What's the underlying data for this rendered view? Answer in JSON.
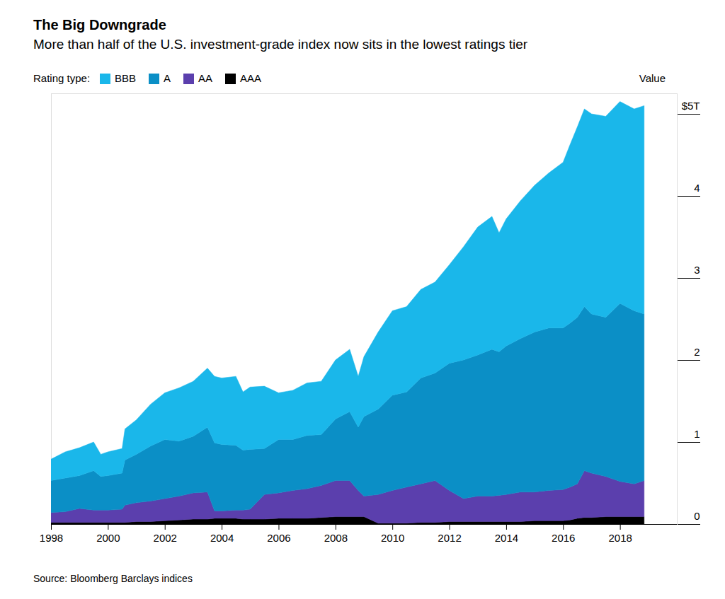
{
  "chart_data": {
    "type": "area",
    "title": "The Big Downgrade",
    "subtitle": "More than half of the U.S. investment-grade index now sits in the lowest ratings tier",
    "legend_title": "Rating type:",
    "ylabel": "Value",
    "source": "Source: Bloomberg Barclays indices",
    "stacked": true,
    "grid": false,
    "legend": "top-left",
    "x": [
      1998,
      1998.5,
      1999,
      1999.5,
      1999.75,
      2000,
      2000.5,
      2000.6,
      2001,
      2001.5,
      2002,
      2002.5,
      2003,
      2003.5,
      2003.75,
      2004,
      2004.5,
      2004.75,
      2005,
      2005.5,
      2006,
      2006.5,
      2007,
      2007.5,
      2008,
      2008.5,
      2008.8,
      2009,
      2009.5,
      2010,
      2010.5,
      2011,
      2011.5,
      2012,
      2012.5,
      2013,
      2013.5,
      2013.75,
      2014,
      2014.5,
      2015,
      2015.5,
      2016,
      2016.25,
      2016.5,
      2016.75,
      2017,
      2017.5,
      2018,
      2018.5,
      2018.85
    ],
    "xlim": [
      1998,
      2020
    ],
    "xticks": [
      1998,
      2000,
      2002,
      2004,
      2006,
      2008,
      2010,
      2012,
      2014,
      2016,
      2018
    ],
    "ylim": [
      0,
      5.25
    ],
    "yticks": [
      0,
      1,
      2,
      3,
      4,
      {
        "value": 5,
        "label": "$5T"
      }
    ],
    "series": [
      {
        "name": "BBB",
        "color": "#1ab7ea",
        "values": [
          0.26,
          0.32,
          0.34,
          0.35,
          0.27,
          0.29,
          0.3,
          0.38,
          0.42,
          0.51,
          0.57,
          0.65,
          0.67,
          0.72,
          0.81,
          0.81,
          0.84,
          0.71,
          0.76,
          0.76,
          0.57,
          0.6,
          0.64,
          0.65,
          0.72,
          0.76,
          0.62,
          0.73,
          0.94,
          1.03,
          1.04,
          1.08,
          1.11,
          1.2,
          1.38,
          1.56,
          1.62,
          1.45,
          1.55,
          1.68,
          1.79,
          1.89,
          2.02,
          2.18,
          2.32,
          2.41,
          2.44,
          2.45,
          2.46,
          2.46,
          2.54
        ]
      },
      {
        "name": "A",
        "color": "#0b8fc6",
        "values": [
          0.39,
          0.41,
          0.4,
          0.48,
          0.41,
          0.42,
          0.44,
          0.55,
          0.59,
          0.67,
          0.72,
          0.67,
          0.69,
          0.79,
          0.83,
          0.81,
          0.79,
          0.73,
          0.73,
          0.56,
          0.65,
          0.62,
          0.65,
          0.62,
          0.75,
          0.84,
          0.77,
          0.97,
          1.04,
          1.16,
          1.16,
          1.29,
          1.31,
          1.55,
          1.69,
          1.72,
          1.79,
          1.75,
          1.81,
          1.87,
          1.95,
          1.98,
          1.97,
          2.0,
          2.03,
          2.0,
          1.94,
          1.94,
          2.17,
          2.11,
          2.03
        ]
      },
      {
        "name": "AA",
        "color": "#5b3fad",
        "values": [
          0.12,
          0.13,
          0.17,
          0.15,
          0.15,
          0.15,
          0.16,
          0.21,
          0.23,
          0.25,
          0.27,
          0.29,
          0.32,
          0.33,
          0.09,
          0.09,
          0.1,
          0.11,
          0.12,
          0.3,
          0.31,
          0.34,
          0.36,
          0.39,
          0.44,
          0.44,
          0.32,
          0.25,
          0.35,
          0.4,
          0.44,
          0.47,
          0.51,
          0.38,
          0.28,
          0.31,
          0.31,
          0.32,
          0.33,
          0.36,
          0.35,
          0.37,
          0.38,
          0.4,
          0.42,
          0.57,
          0.54,
          0.49,
          0.43,
          0.4,
          0.44
        ]
      },
      {
        "name": "AAA",
        "color": "#000000",
        "values": [
          0.02,
          0.02,
          0.02,
          0.02,
          0.02,
          0.02,
          0.02,
          0.02,
          0.03,
          0.03,
          0.04,
          0.05,
          0.06,
          0.06,
          0.07,
          0.07,
          0.07,
          0.06,
          0.06,
          0.06,
          0.07,
          0.07,
          0.07,
          0.08,
          0.09,
          0.09,
          0.09,
          0.09,
          0.01,
          0.01,
          0.01,
          0.02,
          0.02,
          0.03,
          0.03,
          0.03,
          0.03,
          0.03,
          0.03,
          0.03,
          0.04,
          0.04,
          0.04,
          0.05,
          0.07,
          0.08,
          0.08,
          0.09,
          0.09,
          0.09,
          0.09
        ]
      }
    ]
  }
}
